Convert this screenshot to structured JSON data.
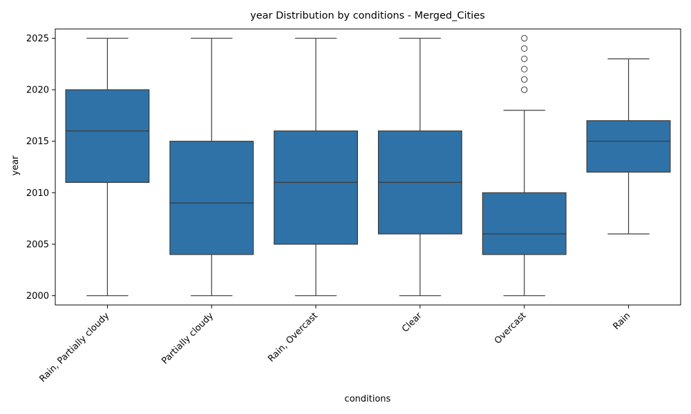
{
  "chart_data": {
    "type": "box",
    "title": "year Distribution by conditions - Merged_Cities",
    "xlabel": "conditions",
    "ylabel": "year",
    "ylim": [
      1999.1,
      2025.9
    ],
    "yticks": [
      2000,
      2005,
      2010,
      2015,
      2020,
      2025
    ],
    "box_color": "#2f72a7",
    "line_color": "#3a3a3a",
    "categories": [
      "Rain, Partially cloudy",
      "Partially cloudy",
      "Rain, Overcast",
      "Clear",
      "Overcast",
      "Rain"
    ],
    "boxes": [
      {
        "category": "Rain, Partially cloudy",
        "whisker_low": 2000,
        "q1": 2011,
        "median": 2016,
        "q3": 2020,
        "whisker_high": 2025,
        "outliers": []
      },
      {
        "category": "Partially cloudy",
        "whisker_low": 2000,
        "q1": 2004,
        "median": 2009,
        "q3": 2015,
        "whisker_high": 2025,
        "outliers": []
      },
      {
        "category": "Rain, Overcast",
        "whisker_low": 2000,
        "q1": 2005,
        "median": 2011,
        "q3": 2016,
        "whisker_high": 2025,
        "outliers": []
      },
      {
        "category": "Clear",
        "whisker_low": 2000,
        "q1": 2006,
        "median": 2011,
        "q3": 2016,
        "whisker_high": 2025,
        "outliers": []
      },
      {
        "category": "Overcast",
        "whisker_low": 2000,
        "q1": 2004,
        "median": 2006,
        "q3": 2010,
        "whisker_high": 2018,
        "outliers": [
          2020,
          2021,
          2022,
          2023,
          2024,
          2025
        ]
      },
      {
        "category": "Rain",
        "whisker_low": 2006,
        "q1": 2012,
        "median": 2015,
        "q3": 2017,
        "whisker_high": 2023,
        "outliers": []
      }
    ]
  }
}
